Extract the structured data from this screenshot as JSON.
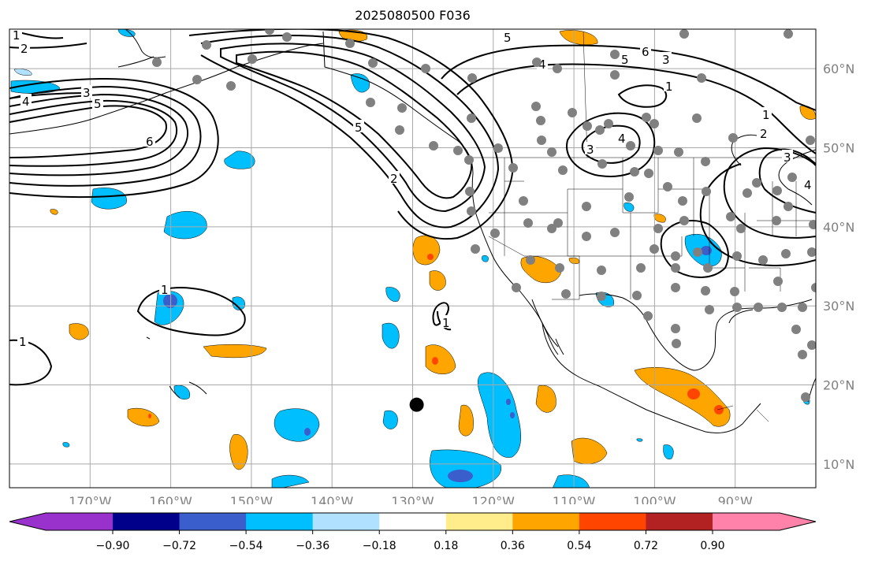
{
  "title": "2025080500 F036",
  "map": {
    "projection": "PlateCarree",
    "lon_range": [
      -180,
      -80
    ],
    "lat_range": [
      7,
      65
    ]
  },
  "lat_ticks": [
    {
      "value": 60,
      "label": "60°N"
    },
    {
      "value": 50,
      "label": "50°N"
    },
    {
      "value": 40,
      "label": "40°N"
    },
    {
      "value": 30,
      "label": "30°N"
    },
    {
      "value": 20,
      "label": "20°N"
    },
    {
      "value": 10,
      "label": "10°N"
    }
  ],
  "lon_ticks": [
    {
      "value": -170,
      "label": "170°W"
    },
    {
      "value": -160,
      "label": "160°W"
    },
    {
      "value": -150,
      "label": "150°W"
    },
    {
      "value": -140,
      "label": "140°W"
    },
    {
      "value": -130,
      "label": "130°W"
    },
    {
      "value": -120,
      "label": "120°W"
    },
    {
      "value": -110,
      "label": "110°W"
    },
    {
      "value": -100,
      "label": "100°W"
    },
    {
      "value": -90,
      "label": "90°W"
    }
  ],
  "colorbar": {
    "bounds": [
      "−0.90",
      "−0.72",
      "−0.54",
      "−0.36",
      "−0.18",
      "0.18",
      "0.36",
      "0.54",
      "0.72",
      "0.90"
    ],
    "colors": [
      "#9932cc",
      "#00008b",
      "#3a5fcd",
      "#00bfff",
      "#b0e2ff",
      "#ffffff",
      "#ffec8b",
      "#ffa500",
      "#ff4500",
      "#b22222",
      "#ff82ab"
    ]
  },
  "contour_labels": [
    "1",
    "2",
    "3",
    "4",
    "5",
    "6"
  ],
  "storm_marker": {
    "lon": -129.5,
    "lat": 17.5
  }
}
